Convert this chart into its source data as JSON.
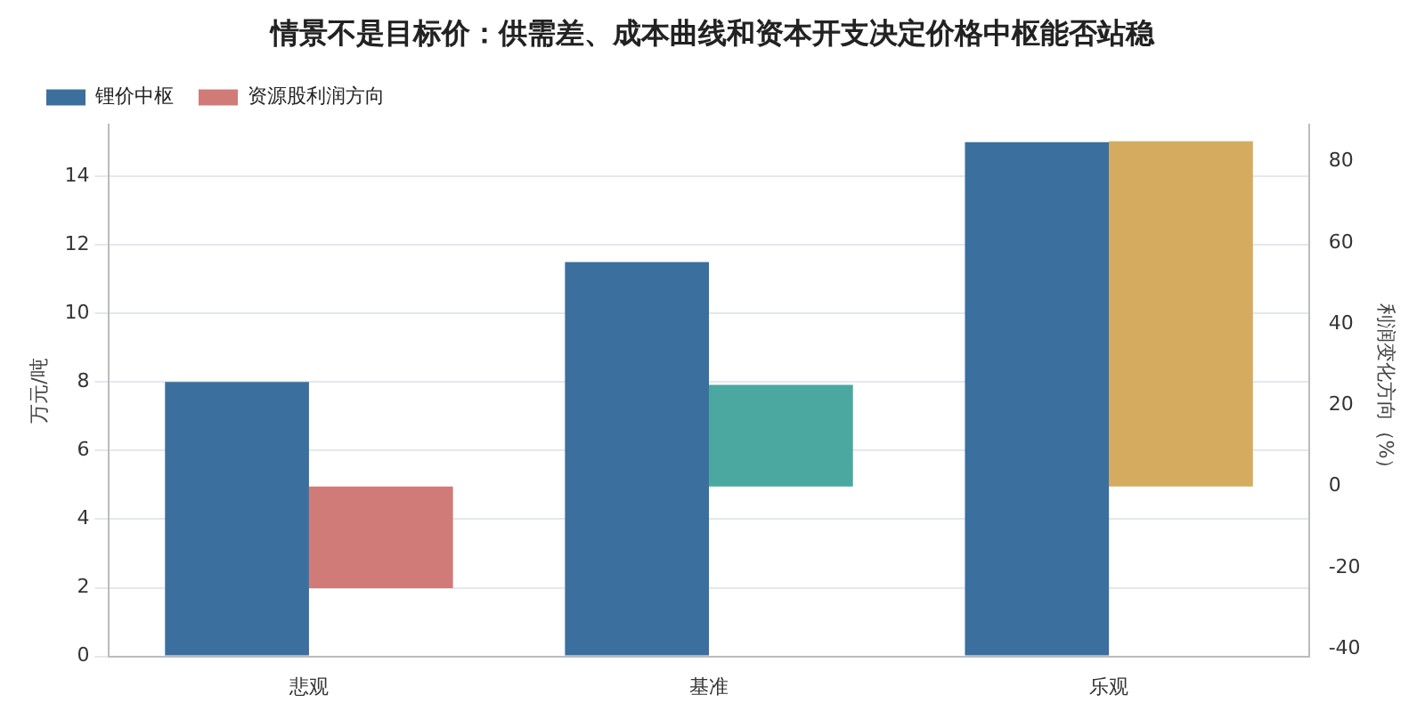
{
  "chart_data": {
    "type": "bar",
    "title": "情景不是目标价：供需差、成本曲线和资本开支决定价格中枢能否站稳",
    "ylabel": "万元/吨",
    "y2label": "利润变化方向（%）",
    "categories": [
      "悲观",
      "基准",
      "乐观"
    ],
    "series": [
      {
        "name": "锂价中枢",
        "color": "#3b6f9e",
        "values": [
          8,
          11.5,
          15
        ]
      },
      {
        "name": "资源股利润方向",
        "axis": "y2",
        "colors": [
          "#d07b78",
          "#4aa8a0",
          "#d5ac5f"
        ],
        "values": [
          -25,
          25,
          85
        ]
      }
    ],
    "ylim": [
      0,
      15.5
    ],
    "yticks": [
      0,
      2,
      4,
      6,
      8,
      10,
      12,
      14
    ],
    "y2lim": [
      -41.8,
      89
    ],
    "y2ticks": [
      -40,
      -20,
      0,
      20,
      40,
      60,
      80
    ],
    "grid": "y",
    "legend": "top left"
  }
}
